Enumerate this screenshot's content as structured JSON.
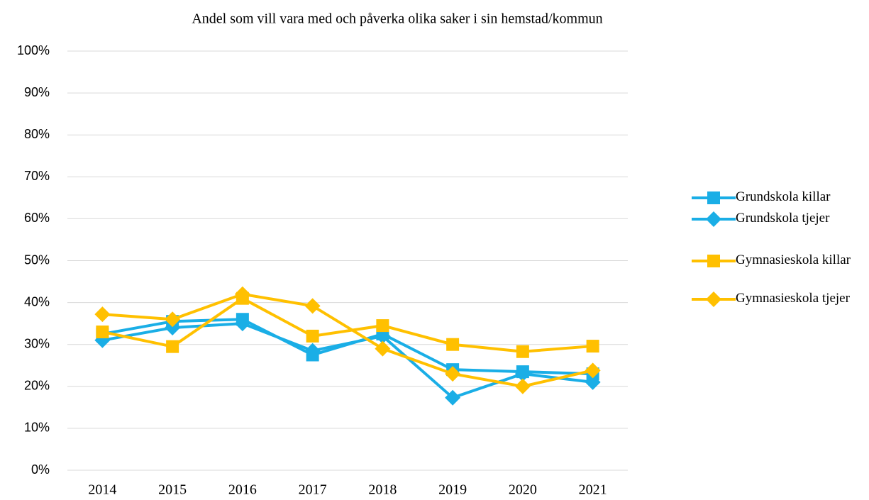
{
  "chart_data": {
    "type": "line",
    "title": "Andel som vill vara med och påverka olika saker i sin hemstad/kommun",
    "categories": [
      "2014",
      "2015",
      "2016",
      "2017",
      "2018",
      "2019",
      "2020",
      "2021"
    ],
    "series": [
      {
        "name": "Grundskola killar",
        "color": "#1AAEE6",
        "marker": "square",
        "values": [
          32.5,
          35.5,
          36,
          27.5,
          32.5,
          24,
          23.5,
          23
        ]
      },
      {
        "name": "Grundskola tjejer",
        "color": "#1AAEE6",
        "marker": "diamond",
        "values": [
          31,
          34,
          35,
          28.5,
          32,
          17.3,
          23,
          21
        ]
      },
      {
        "name": "Gymnasieskola killar",
        "color": "#FFC000",
        "marker": "square",
        "values": [
          33,
          29.5,
          41,
          32,
          34.5,
          30,
          28.3,
          29.6
        ]
      },
      {
        "name": "Gymnasieskola tjejer",
        "color": "#FFC000",
        "marker": "diamond",
        "values": [
          37.2,
          36,
          42,
          39.2,
          29,
          23,
          20,
          23.8
        ]
      }
    ],
    "ylim": [
      0,
      100
    ],
    "yticks": [
      {
        "value": 0,
        "label": "0%"
      },
      {
        "value": 10,
        "label": "10%"
      },
      {
        "value": 20,
        "label": "20%"
      },
      {
        "value": 30,
        "label": "30%"
      },
      {
        "value": 40,
        "label": "40%"
      },
      {
        "value": 50,
        "label": "50%"
      },
      {
        "value": 60,
        "label": "60%"
      },
      {
        "value": 70,
        "label": "70%"
      },
      {
        "value": 80,
        "label": "80%"
      },
      {
        "value": 90,
        "label": "90%"
      },
      {
        "value": 100,
        "label": "100%"
      }
    ],
    "grid": true,
    "legend": "right"
  }
}
